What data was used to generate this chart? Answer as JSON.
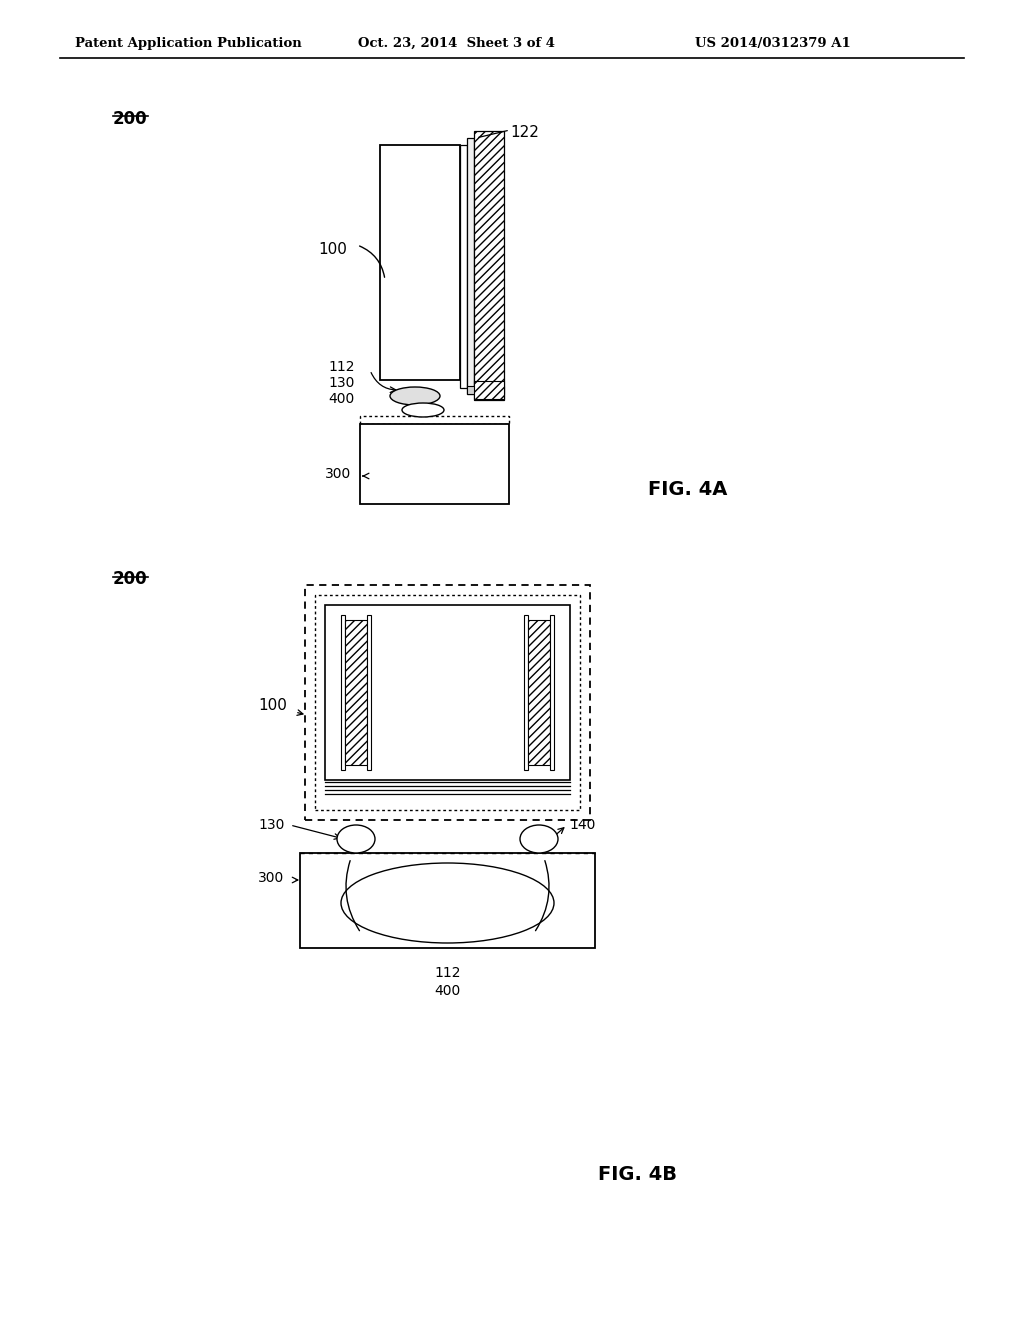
{
  "bg_color": "#ffffff",
  "lc": "#000000",
  "header_left": "Patent Application Publication",
  "header_mid": "Oct. 23, 2014  Sheet 3 of 4",
  "header_right": "US 2014/0312379 A1",
  "fig4a_label": "FIG. 4A",
  "fig4b_label": "FIG. 4B",
  "label_200a": "200",
  "label_200b": "200",
  "label_100a": "100",
  "label_100b": "100",
  "label_122": "122",
  "label_112a": "112",
  "label_130a": "130",
  "label_400a": "400",
  "label_300a": "300",
  "label_130b": "130",
  "label_140b": "140",
  "label_300b": "300",
  "label_112b": "112",
  "label_400b": "400"
}
